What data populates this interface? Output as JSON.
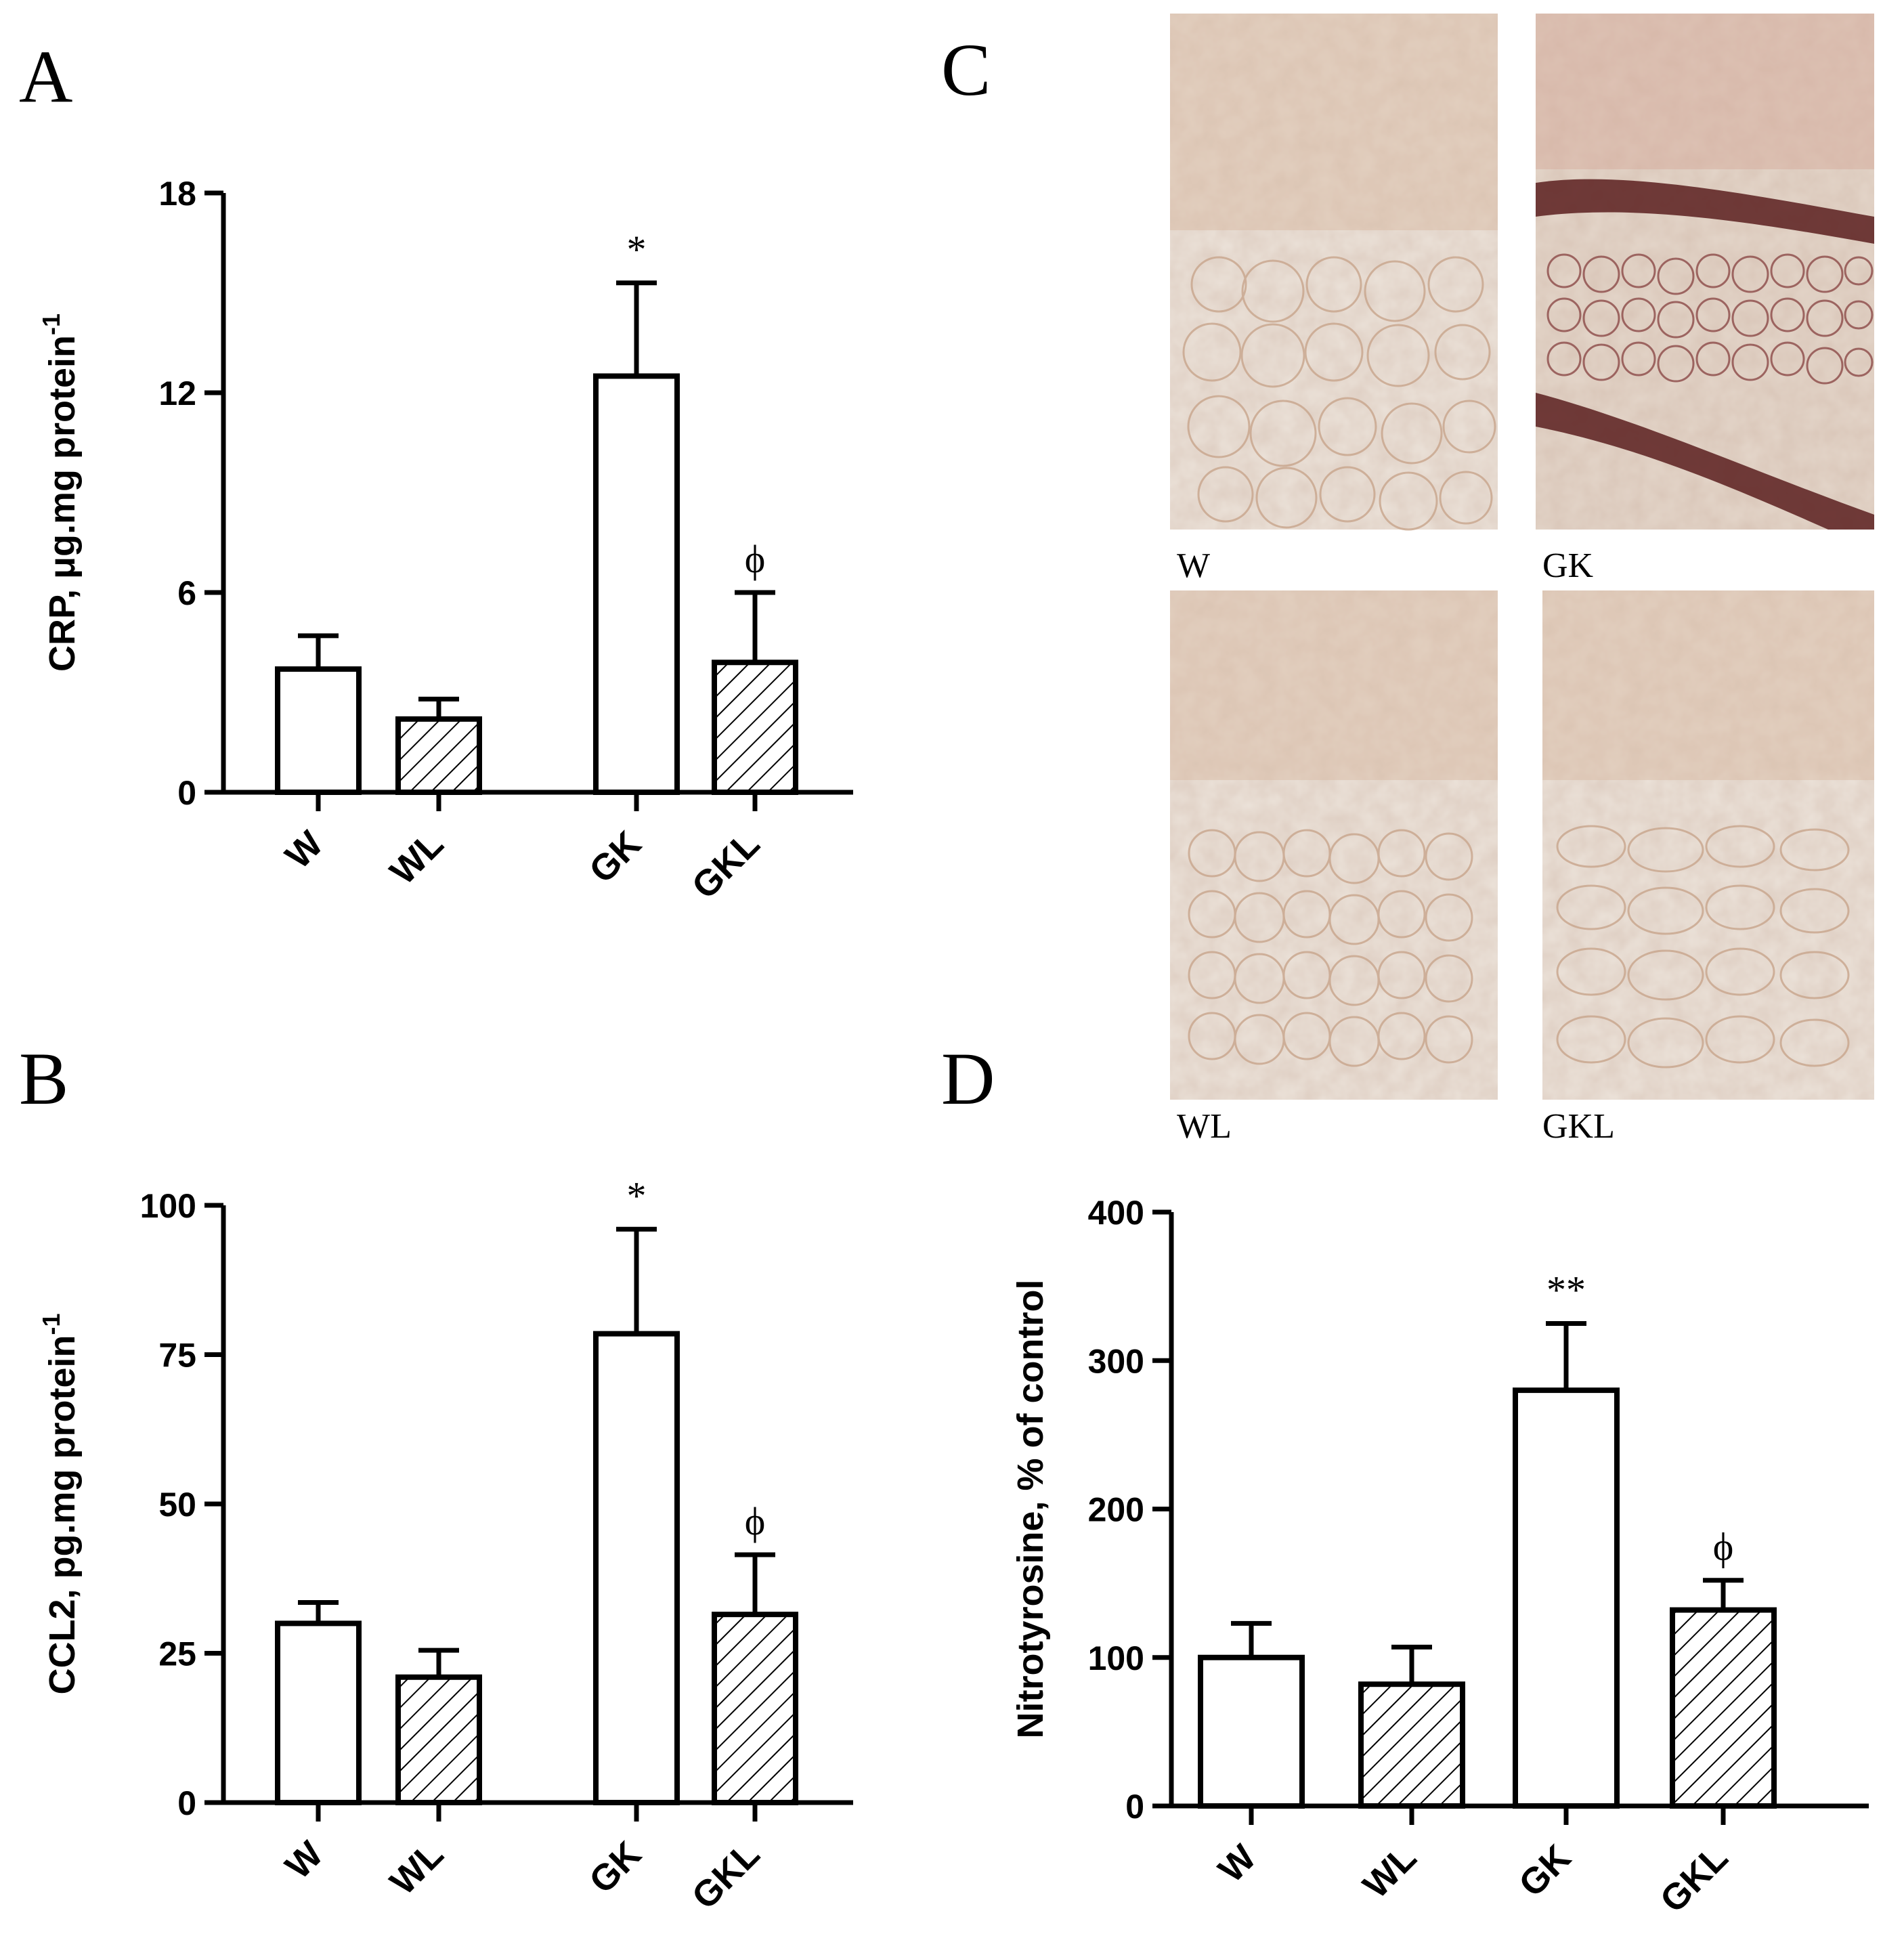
{
  "figure": {
    "panels": {
      "A": "A",
      "B": "B",
      "C": "C",
      "D": "D"
    },
    "micrographs": [
      {
        "label": "W",
        "tone": "light"
      },
      {
        "label": "GK",
        "tone": "dark"
      },
      {
        "label": "WL",
        "tone": "light"
      },
      {
        "label": "GKL",
        "tone": "light"
      }
    ]
  },
  "colors": {
    "bar_fill": "#ffffff",
    "bar_stroke": "#000000",
    "hatch": "#000000",
    "tissue_bg": "#e8ddd3",
    "stain_light": "#c9a287",
    "stain_dark": "#5a1f1f"
  },
  "chart_data": [
    {
      "panel": "A",
      "type": "bar",
      "categories": [
        "W",
        "WL",
        "GK",
        "GKL"
      ],
      "values": [
        3.7,
        2.2,
        12.5,
        3.9
      ],
      "errors": [
        1.0,
        0.6,
        2.8,
        2.1
      ],
      "hatched": [
        false,
        true,
        false,
        true
      ],
      "annotations": [
        "",
        "",
        "*",
        "ϕ"
      ],
      "ylabel": "CRP, μg.mg protein",
      "ylabel_sup": "-1",
      "ylim": [
        0,
        18
      ],
      "yticks": [
        "0",
        "6",
        "12",
        "18"
      ]
    },
    {
      "panel": "B",
      "type": "bar",
      "categories": [
        "W",
        "WL",
        "GK",
        "GKL"
      ],
      "values": [
        30,
        21,
        78.5,
        31.5
      ],
      "errors": [
        3.5,
        4.5,
        17.5,
        10
      ],
      "hatched": [
        false,
        true,
        false,
        true
      ],
      "annotations": [
        "",
        "",
        "*",
        "ϕ"
      ],
      "ylabel": "CCL2, pg.mg protein",
      "ylabel_sup": "-1",
      "ylim": [
        0,
        100
      ],
      "yticks": [
        "0",
        "25",
        "50",
        "75",
        "100"
      ]
    },
    {
      "panel": "D",
      "type": "bar",
      "categories": [
        "W",
        "WL",
        "GK",
        "GKL"
      ],
      "values": [
        100,
        82,
        280,
        132
      ],
      "errors": [
        23,
        25,
        45,
        20
      ],
      "hatched": [
        false,
        true,
        false,
        true
      ],
      "annotations": [
        "",
        "",
        "**",
        "ϕ"
      ],
      "ylabel": "Nitrotyrosine, % of control",
      "ylabel_sup": "",
      "ylim": [
        0,
        400
      ],
      "yticks": [
        "0",
        "100",
        "200",
        "300",
        "400"
      ]
    }
  ]
}
